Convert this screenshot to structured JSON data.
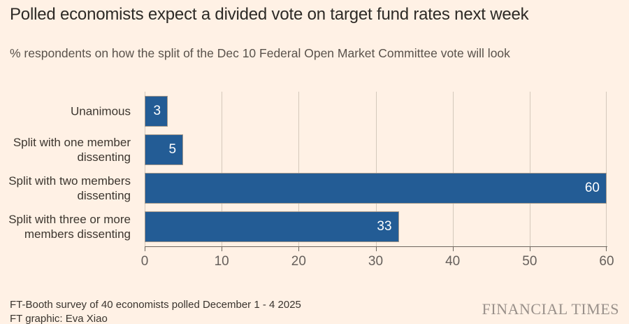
{
  "header": {
    "title": "Polled economists expect a divided vote on target fund rates next week",
    "subtitle": "% respondents on how the split of the Dec 10 Federal Open Market Committee vote will look"
  },
  "chart_data": {
    "type": "bar",
    "orientation": "horizontal",
    "title": "Polled economists expect a divided vote on target fund rates next week",
    "subtitle": "% respondents on how the split of the Dec 10 Federal Open Market Committee vote will look",
    "categories": [
      "Unanimous",
      "Split with one member dissenting",
      "Split with two members dissenting",
      "Split with three or more members dissenting"
    ],
    "values": [
      3,
      5,
      60,
      33
    ],
    "value_labels": [
      "3",
      "5",
      "60",
      "33"
    ],
    "xlabel": "",
    "ylabel": "",
    "xlim": [
      0,
      60
    ],
    "xticks": [
      0,
      10,
      20,
      30,
      40,
      50,
      60
    ],
    "grid": "vertical",
    "legend": "none",
    "bar_color": "#235c95",
    "value_label_color": "#ffffff"
  },
  "footer": {
    "source": "FT-Booth survey of 40 economists polled December 1 - 4 2025",
    "credit": "FT graphic: Eva Xiao",
    "brand": "FINANCIAL TIMES"
  },
  "colors": {
    "background": "#FFF1E5",
    "bar": "#235c95",
    "gridline": "#d4c8bb",
    "axis": "#6e665e",
    "title_text": "#2d2a26",
    "subtitle_text": "#59524b",
    "tick_text": "#66605c",
    "brand_text": "#99908a"
  }
}
